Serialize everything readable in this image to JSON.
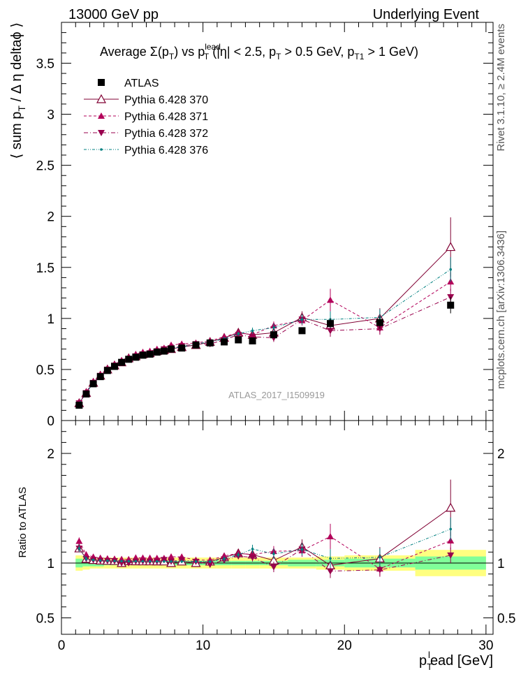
{
  "header": {
    "left": "13000 GeV pp",
    "right": "Underlying Event"
  },
  "side_labels": {
    "rivet": "Rivet 3.1.10, ≥ 2.4M events",
    "mcplots": "mcplots.cern.ch [arXiv:1306.3436]"
  },
  "analysis_tag": "ATLAS_2017_I1509919",
  "colors": {
    "atlas": "#000000",
    "p370": "#800033",
    "p371": "#b3005a",
    "p372": "#99004d",
    "p376": "#008080",
    "band_inner": "#80ff99",
    "band_outer": "#ffff80"
  },
  "chart_data": [
    {
      "type": "scatter",
      "title": "Average Σ(p_T) vs p_T^lead (|η| < 2.5, p_T > 0.5 GeV, p_T1 > 1 GeV)",
      "title_parts": {
        "pre": "Average ",
        "sigma": "Σ(p",
        "sub_t": "T",
        "mid": ") vs p",
        "sup_lead": "lead",
        "rest1": " (|η| < 2.5, p",
        "rest2": " > 0.5 GeV, p",
        "sub_t1": "T1",
        "rest3": " > 1 GeV)"
      },
      "ylabel": "⟨ sum p_T / Δ η deltaϕ ⟩",
      "ylabel_parts": {
        "pre": "⟨ sum p",
        "sub": "T",
        "post": " / Δ η deltaϕ ⟩"
      },
      "xlim": [
        0,
        30.5
      ],
      "ylim": [
        0,
        3.9
      ],
      "y_ticks": [
        "0",
        "0.5",
        "1",
        "1.5",
        "2",
        "2.5",
        "3",
        "3.5"
      ],
      "legend_position": "top-left",
      "x": [
        1.25,
        1.75,
        2.25,
        2.75,
        3.25,
        3.75,
        4.25,
        4.75,
        5.25,
        5.75,
        6.25,
        6.75,
        7.25,
        7.75,
        8.5,
        9.5,
        10.5,
        11.5,
        12.5,
        13.5,
        15.0,
        17.0,
        19.0,
        22.5,
        27.5
      ],
      "series": [
        {
          "name": "ATLAS",
          "marker": "square",
          "values": [
            0.15,
            0.26,
            0.36,
            0.43,
            0.49,
            0.53,
            0.57,
            0.6,
            0.62,
            0.64,
            0.65,
            0.67,
            0.68,
            0.7,
            0.71,
            0.74,
            0.76,
            0.77,
            0.79,
            0.78,
            0.84,
            0.88,
            0.95,
            0.96,
            1.13
          ],
          "errors": [
            0.01,
            0.01,
            0.01,
            0.01,
            0.01,
            0.01,
            0.01,
            0.01,
            0.01,
            0.01,
            0.01,
            0.01,
            0.01,
            0.01,
            0.01,
            0.01,
            0.01,
            0.01,
            0.02,
            0.02,
            0.03,
            0.03,
            0.05,
            0.06,
            0.08
          ]
        },
        {
          "name": "Pythia 6.428 370",
          "marker": "triangle-up-open",
          "line": "solid",
          "values": [
            0.17,
            0.27,
            0.37,
            0.44,
            0.5,
            0.54,
            0.57,
            0.61,
            0.63,
            0.65,
            0.66,
            0.68,
            0.69,
            0.7,
            0.72,
            0.74,
            0.77,
            0.81,
            0.86,
            0.84,
            0.86,
            1.01,
            0.93,
            1.0,
            1.7
          ],
          "errors": [
            0.005,
            0.005,
            0.005,
            0.005,
            0.005,
            0.005,
            0.005,
            0.005,
            0.005,
            0.005,
            0.005,
            0.005,
            0.005,
            0.005,
            0.01,
            0.01,
            0.01,
            0.02,
            0.02,
            0.03,
            0.04,
            0.06,
            0.08,
            0.1,
            0.29
          ]
        },
        {
          "name": "Pythia 6.428 371",
          "marker": "triangle-up",
          "line": "dashed",
          "values": [
            0.18,
            0.28,
            0.38,
            0.45,
            0.51,
            0.55,
            0.59,
            0.62,
            0.65,
            0.67,
            0.68,
            0.7,
            0.71,
            0.74,
            0.75,
            0.76,
            0.78,
            0.82,
            0.86,
            0.84,
            0.93,
            0.98,
            1.18,
            0.91,
            1.36
          ],
          "errors": [
            0.005,
            0.005,
            0.005,
            0.005,
            0.005,
            0.005,
            0.005,
            0.005,
            0.005,
            0.005,
            0.005,
            0.005,
            0.005,
            0.005,
            0.01,
            0.01,
            0.01,
            0.02,
            0.02,
            0.03,
            0.04,
            0.05,
            0.11,
            0.06,
            0.09
          ]
        },
        {
          "name": "Pythia 6.428 372",
          "marker": "triangle-down",
          "line": "dashdot",
          "values": [
            0.17,
            0.27,
            0.37,
            0.44,
            0.5,
            0.54,
            0.57,
            0.6,
            0.63,
            0.65,
            0.66,
            0.68,
            0.7,
            0.71,
            0.73,
            0.75,
            0.75,
            0.79,
            0.84,
            0.82,
            0.81,
            0.99,
            0.88,
            0.9,
            1.21
          ],
          "errors": [
            0.005,
            0.005,
            0.005,
            0.005,
            0.005,
            0.005,
            0.005,
            0.005,
            0.005,
            0.005,
            0.005,
            0.005,
            0.005,
            0.005,
            0.01,
            0.01,
            0.01,
            0.02,
            0.02,
            0.03,
            0.04,
            0.05,
            0.06,
            0.06,
            0.08
          ]
        },
        {
          "name": "Pythia 6.428 376",
          "marker": "dot",
          "line": "dashdotdot",
          "values": [
            0.17,
            0.27,
            0.37,
            0.44,
            0.5,
            0.54,
            0.58,
            0.61,
            0.63,
            0.65,
            0.66,
            0.68,
            0.69,
            0.71,
            0.72,
            0.75,
            0.77,
            0.8,
            0.85,
            0.88,
            0.91,
            0.99,
            0.99,
            1.01,
            1.48
          ],
          "errors": [
            0.005,
            0.005,
            0.005,
            0.005,
            0.005,
            0.005,
            0.005,
            0.005,
            0.005,
            0.005,
            0.005,
            0.005,
            0.005,
            0.005,
            0.01,
            0.01,
            0.01,
            0.02,
            0.02,
            0.03,
            0.04,
            0.05,
            0.08,
            0.08,
            0.12
          ]
        }
      ]
    },
    {
      "type": "scatter",
      "ylabel": "Ratio to ATLAS",
      "xlabel": "p_T^lead [GeV]",
      "xlabel_parts": {
        "p": "p",
        "sub": "T",
        "sup": "l",
        "rest": "ead [GeV]"
      },
      "xlim": [
        0,
        30.5
      ],
      "ylim": [
        0.35,
        2.3
      ],
      "x_ticks": [
        "0",
        "10",
        "20",
        "30"
      ],
      "y_ticks": [
        "0.5",
        "1",
        "2"
      ],
      "ratio_band": {
        "x_edges": [
          1.0,
          1.5,
          2.0,
          2.5,
          3.0,
          3.5,
          4.0,
          4.5,
          5.0,
          5.5,
          6.0,
          6.5,
          7.0,
          7.5,
          8.0,
          9.0,
          10.0,
          11.0,
          12.0,
          13.0,
          14.0,
          16.0,
          18.0,
          20.0,
          25.0,
          30.0
        ],
        "inner": [
          0.04,
          0.03,
          0.03,
          0.03,
          0.02,
          0.02,
          0.02,
          0.02,
          0.02,
          0.02,
          0.02,
          0.02,
          0.02,
          0.02,
          0.02,
          0.02,
          0.02,
          0.02,
          0.02,
          0.02,
          0.02,
          0.03,
          0.03,
          0.04,
          0.06
        ],
        "outer": [
          0.07,
          0.06,
          0.05,
          0.05,
          0.05,
          0.05,
          0.05,
          0.05,
          0.05,
          0.05,
          0.05,
          0.05,
          0.05,
          0.05,
          0.05,
          0.05,
          0.05,
          0.05,
          0.05,
          0.05,
          0.05,
          0.05,
          0.06,
          0.07,
          0.12
        ]
      }
    }
  ]
}
